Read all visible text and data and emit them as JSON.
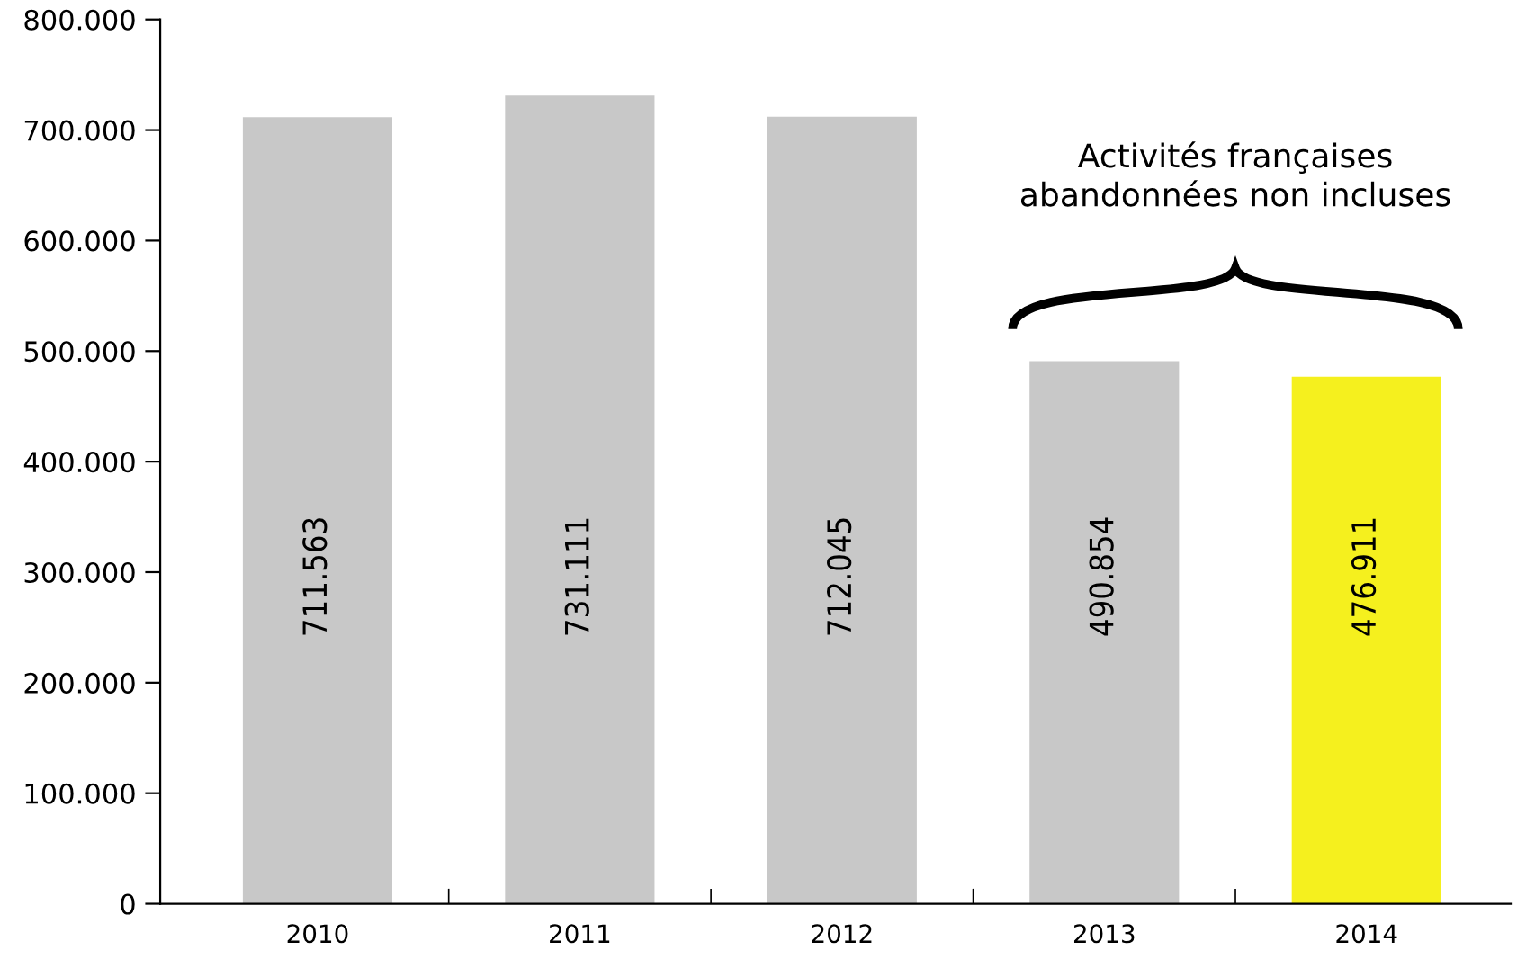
{
  "chart_data": {
    "type": "bar",
    "categories": [
      "2010",
      "2011",
      "2012",
      "2013",
      "2014"
    ],
    "values": [
      711563,
      731111,
      712045,
      490854,
      476911
    ],
    "colors": [
      "#c8c8c8",
      "#c8c8c8",
      "#c8c8c8",
      "#c8c8c8",
      "#f5f01e"
    ],
    "value_labels": [
      "711.563",
      "731.111",
      "712.045",
      "490.854",
      "476.911"
    ],
    "ylim": [
      0,
      800000
    ],
    "yticks": [
      {
        "value": 0,
        "label": "0"
      },
      {
        "value": 100000,
        "label": "100.000"
      },
      {
        "value": 200000,
        "label": "200.000"
      },
      {
        "value": 300000,
        "label": "300.000"
      },
      {
        "value": 400000,
        "label": "400.000"
      },
      {
        "value": 500000,
        "label": "500.000"
      },
      {
        "value": 600000,
        "label": "600.000"
      },
      {
        "value": 700000,
        "label": "700.000"
      },
      {
        "value": 800000,
        "label": "800.000"
      }
    ],
    "annotations": [
      "Activités françaises\nabandonnées non incluses"
    ],
    "grid": false,
    "legend": false
  }
}
